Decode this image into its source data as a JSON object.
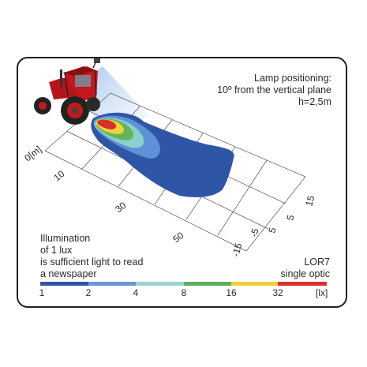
{
  "lamp": {
    "title": "Lamp positioning:",
    "angle": "10º from the vertical plane",
    "height": "h=2,5m"
  },
  "note": {
    "line1": "Illumination",
    "line2": "of 1 lux",
    "line3": "is sufficient light to read",
    "line4": "a newspaper"
  },
  "product": {
    "name": "LOR7",
    "optic": "single optic"
  },
  "distance_axis": {
    "unit_label": "0[m]",
    "ticks": [
      "10",
      "30",
      "50"
    ]
  },
  "lateral_axis": {
    "ticks": [
      "15",
      "5",
      "5",
      "-5",
      "-15"
    ]
  },
  "legend": {
    "ticks": [
      "1",
      "2",
      "4",
      "8",
      "16",
      "32"
    ],
    "unit": "[lx]",
    "colors": [
      "#2e55a6",
      "#6c95d6",
      "#9ed3d0",
      "#5bb15b",
      "#f0d03a",
      "#d7322c"
    ]
  },
  "isolux_colors": {
    "lux_1": "#2e55a6",
    "lux_2": "#5f90d8",
    "lux_4": "#8ccfcf",
    "lux_8": "#63b65c",
    "lux_16": "#f2d23a",
    "lux_32": "#d6302a"
  }
}
